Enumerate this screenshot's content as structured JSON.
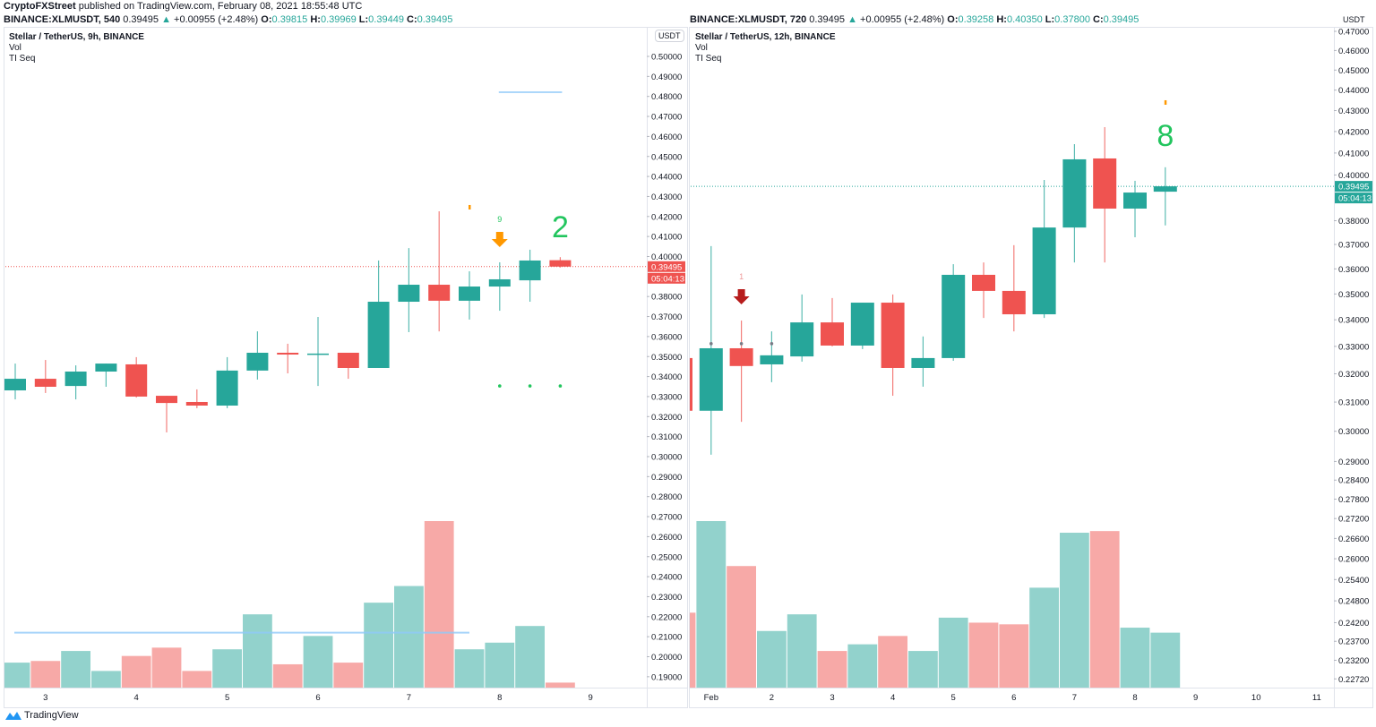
{
  "header": {
    "publisher": "CryptoFXStreet",
    "published_text": "published on TradingView.com, February 08, 2021 18:55:48 UTC"
  },
  "footer": {
    "brand": "TradingView"
  },
  "colors": {
    "up": "#26a69a",
    "down": "#ef5350",
    "vol_up": "#92d2cc",
    "vol_down": "#f7a9a7",
    "ti_green": "#22c55e",
    "arrow_orange": "#ff9800",
    "arrow_red": "#b71c1c",
    "level_line": "#90caf9"
  },
  "left": {
    "symbol": "BINANCE:XLMUSDT, 540",
    "last": "0.39495",
    "change": "+0.00955 (+2.48%)",
    "o_label": "O:",
    "o": "0.39815",
    "h_label": "H:",
    "h": "0.39969",
    "l_label": "L:",
    "l": "0.39449",
    "c_label": "C:",
    "c": "0.39495",
    "title": "Stellar / TetherUS, 9h, BINANCE",
    "vol_label": "Vol",
    "ti_label": "TI Seq",
    "currency": "USDT",
    "price_tag": "0.39495",
    "countdown": "05:04:13"
  },
  "right": {
    "symbol": "BINANCE:XLMUSDT, 720",
    "last": "0.39495",
    "change": "+0.00955 (+2.48%)",
    "o_label": "O:",
    "o": "0.39258",
    "h_label": "H:",
    "h": "0.40350",
    "l_label": "L:",
    "l": "0.37800",
    "c_label": "C:",
    "c": "0.39495",
    "title": "Stellar / TetherUS, 12h, BINANCE",
    "vol_label": "Vol",
    "ti_label": "TI Seq",
    "currency": "USDT",
    "price_tag": "0.39495",
    "countdown": "05:04:13"
  },
  "chart_data": [
    {
      "type": "candlestick",
      "title": "Stellar / TetherUS, 9h, BINANCE",
      "y_scale": "linear",
      "ylim": [
        0.185,
        0.505
      ],
      "y_ticks": [
        "0.50000",
        "0.49000",
        "0.48000",
        "0.47000",
        "0.46000",
        "0.45000",
        "0.44000",
        "0.43000",
        "0.42000",
        "0.41000",
        "0.40000",
        "0.38000",
        "0.37000",
        "0.36000",
        "0.35000",
        "0.34000",
        "0.33000",
        "0.32000",
        "0.31000",
        "0.30000",
        "0.29000",
        "0.28000",
        "0.27000",
        "0.26000",
        "0.25000",
        "0.24000",
        "0.23000",
        "0.22000",
        "0.21000",
        "0.20000",
        "0.19000"
      ],
      "x_ticks": [
        "3",
        "4",
        "5",
        "6",
        "7",
        "8",
        "9"
      ],
      "last_price": 0.39495,
      "candles": [
        {
          "o": 0.3331,
          "h": 0.3465,
          "l": 0.3286,
          "c": 0.3389
        },
        {
          "o": 0.3389,
          "h": 0.3483,
          "l": 0.3318,
          "c": 0.3349
        },
        {
          "o": 0.3353,
          "h": 0.3456,
          "l": 0.3286,
          "c": 0.3425
        },
        {
          "o": 0.3425,
          "h": 0.3465,
          "l": 0.3349,
          "c": 0.3465
        },
        {
          "o": 0.3461,
          "h": 0.3497,
          "l": 0.3295,
          "c": 0.33
        },
        {
          "o": 0.3304,
          "h": 0.3304,
          "l": 0.3121,
          "c": 0.3268
        },
        {
          "o": 0.3273,
          "h": 0.3336,
          "l": 0.3242,
          "c": 0.3255
        },
        {
          "o": 0.3255,
          "h": 0.3497,
          "l": 0.3242,
          "c": 0.343
        },
        {
          "o": 0.343,
          "h": 0.3626,
          "l": 0.3385,
          "c": 0.3519
        },
        {
          "o": 0.3519,
          "h": 0.3564,
          "l": 0.3416,
          "c": 0.351
        },
        {
          "o": 0.3513,
          "h": 0.3698,
          "l": 0.3353,
          "c": 0.3515
        },
        {
          "o": 0.3519,
          "h": 0.3519,
          "l": 0.3389,
          "c": 0.3443
        },
        {
          "o": 0.3443,
          "h": 0.398,
          "l": 0.3443,
          "c": 0.3774
        },
        {
          "o": 0.3774,
          "h": 0.4042,
          "l": 0.3622,
          "c": 0.3859
        },
        {
          "o": 0.3859,
          "h": 0.4226,
          "l": 0.3626,
          "c": 0.3779
        },
        {
          "o": 0.3779,
          "h": 0.3926,
          "l": 0.3685,
          "c": 0.385
        },
        {
          "o": 0.385,
          "h": 0.3971,
          "l": 0.3729,
          "c": 0.3886
        },
        {
          "o": 0.3881,
          "h": 0.4034,
          "l": 0.3774,
          "c": 0.398
        },
        {
          "o": 0.39815,
          "h": 0.39969,
          "l": 0.39449,
          "c": 0.39495
        }
      ],
      "volume_relative": [
        15,
        16,
        22,
        10,
        19,
        24,
        10,
        23,
        44,
        14,
        31,
        15,
        51,
        61,
        100,
        23,
        27,
        37,
        3
      ],
      "volume_average_line": 33,
      "resistance_level": 0.4821,
      "ti_seq": {
        "count_label": "9",
        "count_index": 16,
        "sell_arrow_index": 16,
        "big_count": "2",
        "big_count_index": 18,
        "dots_index": [
          16,
          17,
          18
        ],
        "dots_price": 0.3353,
        "marker_index": 15,
        "marker_price": 0.4244
      }
    },
    {
      "type": "candlestick",
      "title": "Stellar / TetherUS, 12h, BINANCE",
      "y_scale": "log",
      "ylim": [
        0.225,
        0.475
      ],
      "y_ticks": [
        "0.47000",
        "0.46000",
        "0.45000",
        "0.44000",
        "0.43000",
        "0.42000",
        "0.41000",
        "0.40000",
        "0.38000",
        "0.37000",
        "0.36000",
        "0.35000",
        "0.34000",
        "0.33000",
        "0.32000",
        "0.31000",
        "0.30000",
        "0.29000",
        "0.28400",
        "0.27800",
        "0.27200",
        "0.26600",
        "0.26000",
        "0.25400",
        "0.24800",
        "0.24200",
        "0.23700",
        "0.23200",
        "0.22720"
      ],
      "x_ticks": [
        "Feb",
        "2",
        "3",
        "4",
        "5",
        "6",
        "7",
        "8",
        "9",
        "10",
        "11"
      ],
      "last_price": 0.39495,
      "candles": [
        {
          "o": 0.3257,
          "h": 0.3257,
          "l": 0.307,
          "c": 0.307
        },
        {
          "o": 0.307,
          "h": 0.3693,
          "l": 0.2922,
          "c": 0.3293
        },
        {
          "o": 0.3293,
          "h": 0.3397,
          "l": 0.3032,
          "c": 0.3228
        },
        {
          "o": 0.3234,
          "h": 0.3356,
          "l": 0.317,
          "c": 0.3267
        },
        {
          "o": 0.3263,
          "h": 0.3498,
          "l": 0.3244,
          "c": 0.339
        },
        {
          "o": 0.339,
          "h": 0.3484,
          "l": 0.33,
          "c": 0.3303
        },
        {
          "o": 0.3303,
          "h": 0.3466,
          "l": 0.329,
          "c": 0.3466
        },
        {
          "o": 0.3466,
          "h": 0.3498,
          "l": 0.3122,
          "c": 0.3221
        },
        {
          "o": 0.3221,
          "h": 0.3337,
          "l": 0.3154,
          "c": 0.3257
        },
        {
          "o": 0.3257,
          "h": 0.3619,
          "l": 0.3247,
          "c": 0.3576
        },
        {
          "o": 0.3576,
          "h": 0.3626,
          "l": 0.3407,
          "c": 0.3512
        },
        {
          "o": 0.3512,
          "h": 0.3697,
          "l": 0.3356,
          "c": 0.3421
        },
        {
          "o": 0.3421,
          "h": 0.3978,
          "l": 0.3407,
          "c": 0.3771
        },
        {
          "o": 0.3771,
          "h": 0.4141,
          "l": 0.3626,
          "c": 0.4071
        },
        {
          "o": 0.4075,
          "h": 0.4221,
          "l": 0.3626,
          "c": 0.3852
        },
        {
          "o": 0.3852,
          "h": 0.3974,
          "l": 0.373,
          "c": 0.3922
        },
        {
          "o": 0.39258,
          "h": 0.4035,
          "l": 0.378,
          "c": 0.39495
        }
      ],
      "volume_relative": [
        45,
        100,
        73,
        34,
        44,
        22,
        26,
        31,
        22,
        42,
        39,
        38,
        60,
        93,
        94,
        36,
        33
      ],
      "ti_seq": {
        "count_label": "1",
        "count_index": 2,
        "sell_arrow_index": 2,
        "big_count": "8",
        "big_count_index": 16,
        "dots_index": [
          1,
          2,
          3
        ],
        "dots_price": 0.331,
        "marker_index": 16,
        "marker_price": 0.4337
      }
    }
  ]
}
